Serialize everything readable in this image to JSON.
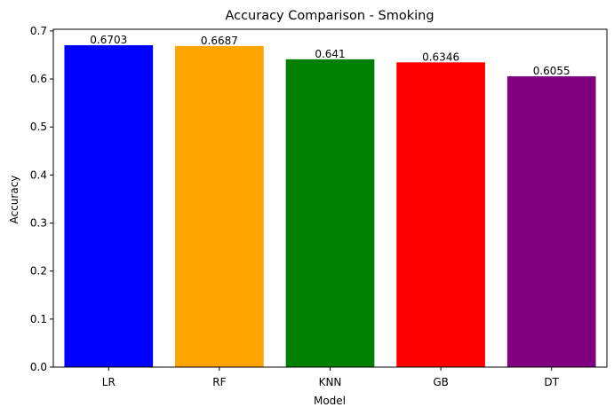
{
  "chart_data": {
    "type": "bar",
    "title": "Accuracy Comparison - Smoking",
    "xlabel": "Model",
    "ylabel": "Accuracy",
    "categories": [
      "LR",
      "RF",
      "KNN",
      "GB",
      "DT"
    ],
    "values": [
      0.6703,
      0.6687,
      0.641,
      0.6346,
      0.6055
    ],
    "data_labels": [
      "0.6703",
      "0.6687",
      "0.641",
      "0.6346",
      "0.6055"
    ],
    "colors": [
      "#0000ff",
      "#ffa500",
      "#008000",
      "#ff0000",
      "#800080"
    ],
    "ylim": [
      0,
      0.7035
    ],
    "yticks": [
      0.0,
      0.1,
      0.2,
      0.3,
      0.4,
      0.5,
      0.6,
      0.7
    ],
    "ytick_labels": [
      "0.0",
      "0.1",
      "0.2",
      "0.3",
      "0.4",
      "0.5",
      "0.6",
      "0.7"
    ],
    "grid": false,
    "legend": "none"
  }
}
